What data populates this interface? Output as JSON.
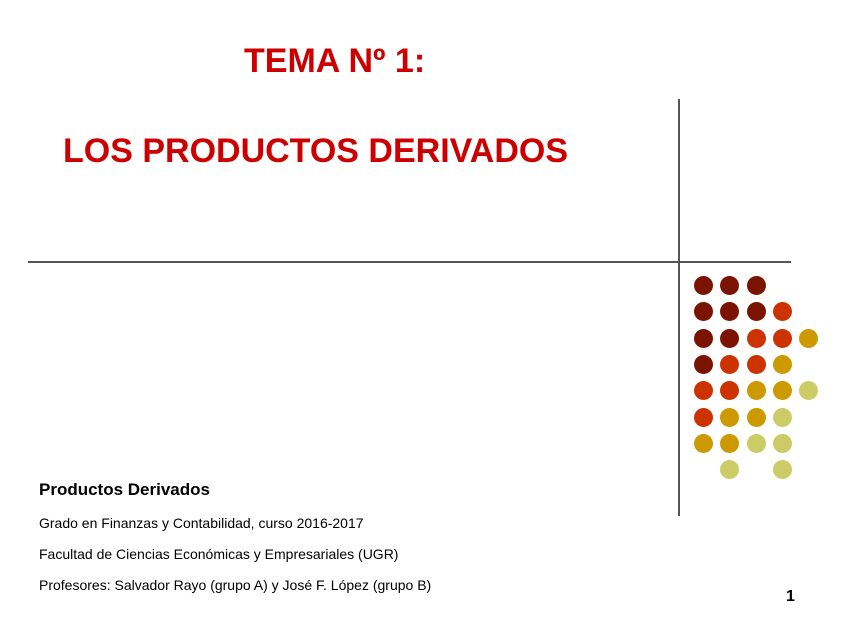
{
  "slide": {
    "title_line1": "TEMA Nº 1:",
    "title_line2": "LOS PRODUCTOS DERIVADOS",
    "subtitle": "Productos Derivados",
    "lines": [
      "Grado en Finanzas y Contabilidad, curso 2016-2017",
      "Facultad de Ciencias Económicas y Empresariales (UGR)",
      "Profesores: Salvador Rayo (grupo A) y José F. López (grupo B)"
    ],
    "page_number": "1"
  },
  "colors": {
    "title": "#cc0000",
    "D": "#7a1400",
    "R": "#cc3300",
    "Y": "#cc9900",
    "L": "#cccc66"
  },
  "dot_pattern": [
    "DDD..",
    "DDDR.",
    "DDRRY",
    "DRRY.",
    "RRYYL",
    "RYYL.",
    "YYLL.",
    ".L.L."
  ]
}
